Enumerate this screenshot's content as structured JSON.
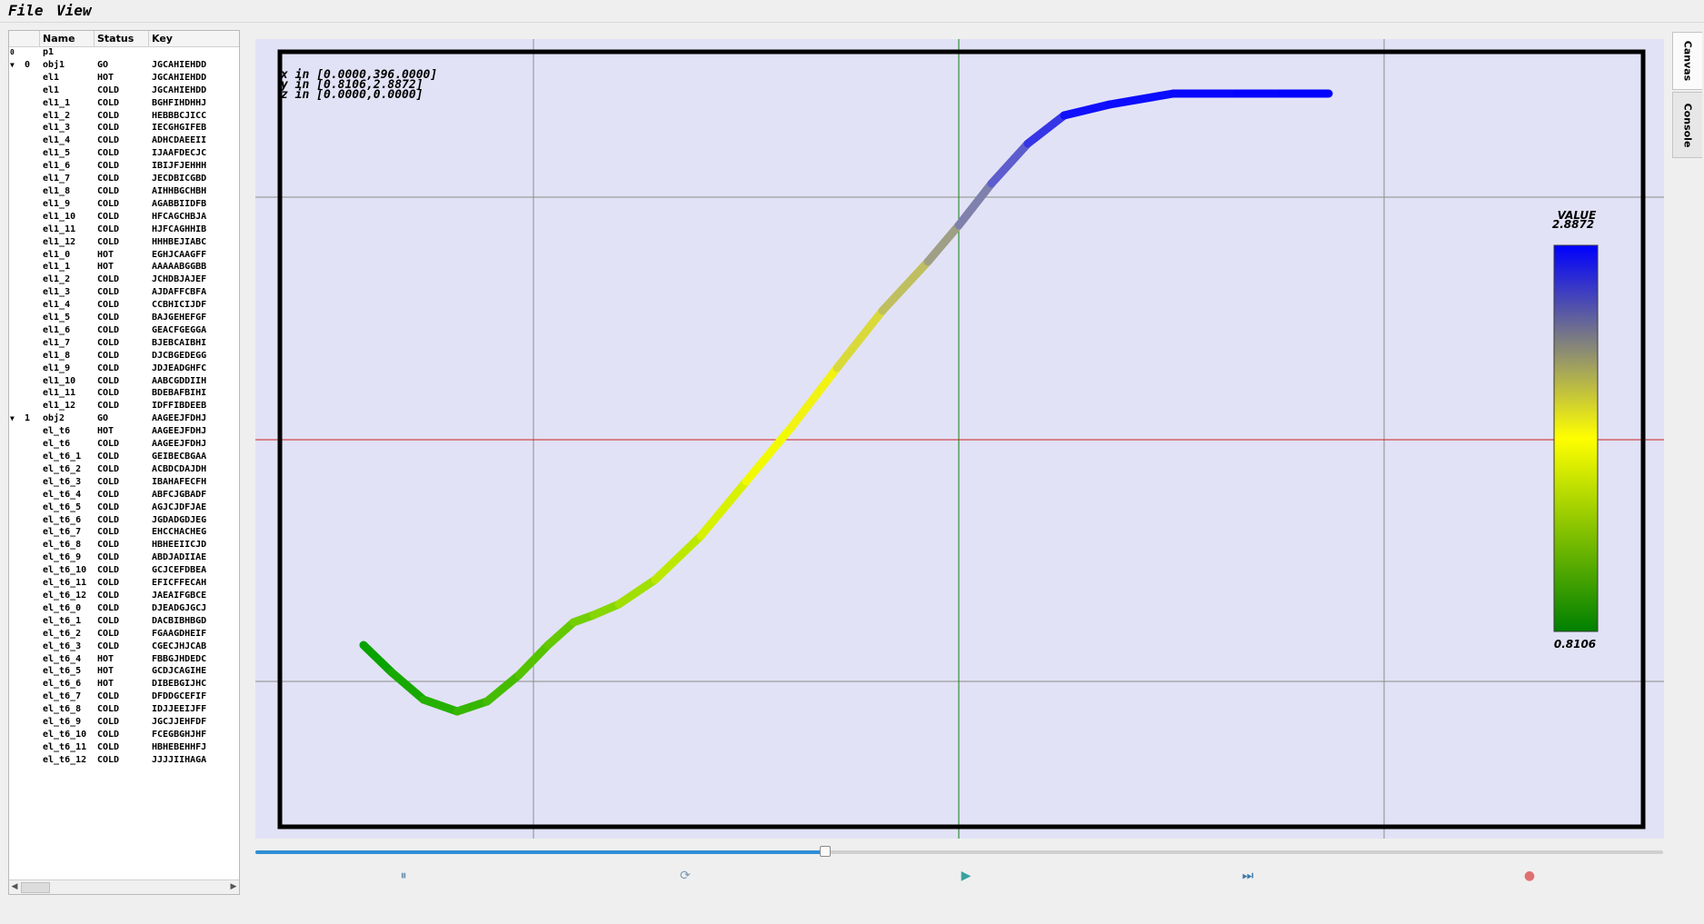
{
  "menu": {
    "items": [
      "File",
      "View"
    ]
  },
  "tree": {
    "columns": [
      "",
      "Name",
      "Status",
      "Key"
    ],
    "rows": [
      {
        "idx": "0",
        "name": "p1",
        "status": "",
        "key": "",
        "arrow": "",
        "idx_left": true
      },
      {
        "idx": "0",
        "name": "obj1",
        "status": "GO",
        "key": "JGCAHIEHDD",
        "arrow": "▼"
      },
      {
        "idx": "",
        "name": "el1",
        "status": "HOT",
        "key": "JGCAHIEHDD"
      },
      {
        "idx": "",
        "name": "el1",
        "status": "COLD",
        "key": "JGCAHIEHDD"
      },
      {
        "idx": "",
        "name": "el1_1",
        "status": "COLD",
        "key": "BGHFIHDHHJ"
      },
      {
        "idx": "",
        "name": "el1_2",
        "status": "COLD",
        "key": "HEBBBCJICC"
      },
      {
        "idx": "",
        "name": "el1_3",
        "status": "COLD",
        "key": "IECGHGIFEB"
      },
      {
        "idx": "",
        "name": "el1_4",
        "status": "COLD",
        "key": "ADHCDAEEII"
      },
      {
        "idx": "",
        "name": "el1_5",
        "status": "COLD",
        "key": "IJAAFDECJC"
      },
      {
        "idx": "",
        "name": "el1_6",
        "status": "COLD",
        "key": "IBIJFJEHHH"
      },
      {
        "idx": "",
        "name": "el1_7",
        "status": "COLD",
        "key": "JECDBICGBD"
      },
      {
        "idx": "",
        "name": "el1_8",
        "status": "COLD",
        "key": "AIHHBGCHBH"
      },
      {
        "idx": "",
        "name": "el1_9",
        "status": "COLD",
        "key": "AGABBIIDFB"
      },
      {
        "idx": "",
        "name": "el1_10",
        "status": "COLD",
        "key": "HFCAGCHBJA"
      },
      {
        "idx": "",
        "name": "el1_11",
        "status": "COLD",
        "key": "HJFCAGHHIB"
      },
      {
        "idx": "",
        "name": "el1_12",
        "status": "COLD",
        "key": "HHHBEJIABC"
      },
      {
        "idx": "",
        "name": "el1_0",
        "status": "HOT",
        "key": "EGHJCAAGFF"
      },
      {
        "idx": "",
        "name": "el1_1",
        "status": "HOT",
        "key": "AAAAABGGBB"
      },
      {
        "idx": "",
        "name": "el1_2",
        "status": "COLD",
        "key": "JCHDBJAJEF"
      },
      {
        "idx": "",
        "name": "el1_3",
        "status": "COLD",
        "key": "AJDAFFCBFA"
      },
      {
        "idx": "",
        "name": "el1_4",
        "status": "COLD",
        "key": "CCBHICIJDF"
      },
      {
        "idx": "",
        "name": "el1_5",
        "status": "COLD",
        "key": "BAJGEHEFGF"
      },
      {
        "idx": "",
        "name": "el1_6",
        "status": "COLD",
        "key": "GEACFGEGGA"
      },
      {
        "idx": "",
        "name": "el1_7",
        "status": "COLD",
        "key": "BJEBCAIBHI"
      },
      {
        "idx": "",
        "name": "el1_8",
        "status": "COLD",
        "key": "DJCBGEDEGG"
      },
      {
        "idx": "",
        "name": "el1_9",
        "status": "COLD",
        "key": "JDJEADGHFC"
      },
      {
        "idx": "",
        "name": "el1_10",
        "status": "COLD",
        "key": "AABCGDDIIH"
      },
      {
        "idx": "",
        "name": "el1_11",
        "status": "COLD",
        "key": "BDEBAFBIHI"
      },
      {
        "idx": "",
        "name": "el1_12",
        "status": "COLD",
        "key": "IDFFIBDEEB"
      },
      {
        "idx": "1",
        "name": "obj2",
        "status": "GO",
        "key": "AAGEEJFDHJ",
        "arrow": "▼"
      },
      {
        "idx": "",
        "name": "el_t6",
        "status": "HOT",
        "key": "AAGEEJFDHJ"
      },
      {
        "idx": "",
        "name": "el_t6",
        "status": "COLD",
        "key": "AAGEEJFDHJ"
      },
      {
        "idx": "",
        "name": "el_t6_1",
        "status": "COLD",
        "key": "GEIBECBGAA"
      },
      {
        "idx": "",
        "name": "el_t6_2",
        "status": "COLD",
        "key": "ACBDCDAJDH"
      },
      {
        "idx": "",
        "name": "el_t6_3",
        "status": "COLD",
        "key": "IBAHAFECFH"
      },
      {
        "idx": "",
        "name": "el_t6_4",
        "status": "COLD",
        "key": "ABFCJGBADF"
      },
      {
        "idx": "",
        "name": "el_t6_5",
        "status": "COLD",
        "key": "AGJCJDFJAE"
      },
      {
        "idx": "",
        "name": "el_t6_6",
        "status": "COLD",
        "key": "JGDADGDJEG"
      },
      {
        "idx": "",
        "name": "el_t6_7",
        "status": "COLD",
        "key": "EHCCHACHEG"
      },
      {
        "idx": "",
        "name": "el_t6_8",
        "status": "COLD",
        "key": "HBHEEIICJD"
      },
      {
        "idx": "",
        "name": "el_t6_9",
        "status": "COLD",
        "key": "ABDJADIIAE"
      },
      {
        "idx": "",
        "name": "el_t6_10",
        "status": "COLD",
        "key": "GCJCEFDBEA"
      },
      {
        "idx": "",
        "name": "el_t6_11",
        "status": "COLD",
        "key": "EFICFFECAH"
      },
      {
        "idx": "",
        "name": "el_t6_12",
        "status": "COLD",
        "key": "JAEAIFGBCE"
      },
      {
        "idx": "",
        "name": "el_t6_0",
        "status": "COLD",
        "key": "DJEADGJGCJ"
      },
      {
        "idx": "",
        "name": "el_t6_1",
        "status": "COLD",
        "key": "DACBIBHBGD"
      },
      {
        "idx": "",
        "name": "el_t6_2",
        "status": "COLD",
        "key": "FGAAGDHEIF"
      },
      {
        "idx": "",
        "name": "el_t6_3",
        "status": "COLD",
        "key": "CGECJHJCAB"
      },
      {
        "idx": "",
        "name": "el_t6_4",
        "status": "HOT",
        "key": "FBBGJHDEDC"
      },
      {
        "idx": "",
        "name": "el_t6_5",
        "status": "HOT",
        "key": "GCDJCAGIHE"
      },
      {
        "idx": "",
        "name": "el_t6_6",
        "status": "HOT",
        "key": "DIBEBGIJHC"
      },
      {
        "idx": "",
        "name": "el_t6_7",
        "status": "COLD",
        "key": "DFDDGCEFIF"
      },
      {
        "idx": "",
        "name": "el_t6_8",
        "status": "COLD",
        "key": "IDJJEEIJFF"
      },
      {
        "idx": "",
        "name": "el_t6_9",
        "status": "COLD",
        "key": "JGCJJEHFDF"
      },
      {
        "idx": "",
        "name": "el_t6_10",
        "status": "COLD",
        "key": "FCEGBGHJHF"
      },
      {
        "idx": "",
        "name": "el_t6_11",
        "status": "COLD",
        "key": "HBHEBEHHFJ"
      },
      {
        "idx": "",
        "name": "el_t6_12",
        "status": "COLD",
        "key": "JJJJIIHAGA"
      }
    ]
  },
  "plot": {
    "info_lines": [
      "x in [0.0000,396.0000]",
      "y in [0.8106,2.8872]",
      "z in [0.0000,0.0000]"
    ],
    "colorbar": {
      "label": "VALUE",
      "max_label": "2.8872",
      "min_label": "0.8106",
      "colors": [
        "#0000ff",
        "#ffff00",
        "#008000"
      ]
    },
    "curve_color_stops": [
      {
        "t": 0.0,
        "color": "#00a000"
      },
      {
        "t": 0.33,
        "color": "#7fd400"
      },
      {
        "t": 0.52,
        "color": "#ffff00"
      },
      {
        "t": 0.62,
        "color": "#bfbf60"
      },
      {
        "t": 0.72,
        "color": "#7070c0"
      },
      {
        "t": 0.82,
        "color": "#1010ff"
      },
      {
        "t": 1.0,
        "color": "#0000ff"
      }
    ],
    "crosshair_colors": {
      "vertical": "#108010",
      "horizontal": "#cc2020"
    }
  },
  "slider": {
    "value_fraction": 0.405
  },
  "controls": [
    {
      "name": "pause-button",
      "icon": "pause-icon",
      "glyph": "⏸",
      "color": "#6a8fb0"
    },
    {
      "name": "reload-button",
      "icon": "reload-icon",
      "glyph": "⟳",
      "color": "#7a9ab5"
    },
    {
      "name": "play-button",
      "icon": "play-icon",
      "glyph": "▶",
      "color": "#3aa0a0"
    },
    {
      "name": "step-forward-button",
      "icon": "step-forward-icon",
      "glyph": "⏭",
      "color": "#3a78a8"
    },
    {
      "name": "stop-button",
      "icon": "stop-icon",
      "glyph": "●",
      "color": "#e07070"
    }
  ],
  "side_tabs": [
    "Canvas",
    "Console"
  ]
}
